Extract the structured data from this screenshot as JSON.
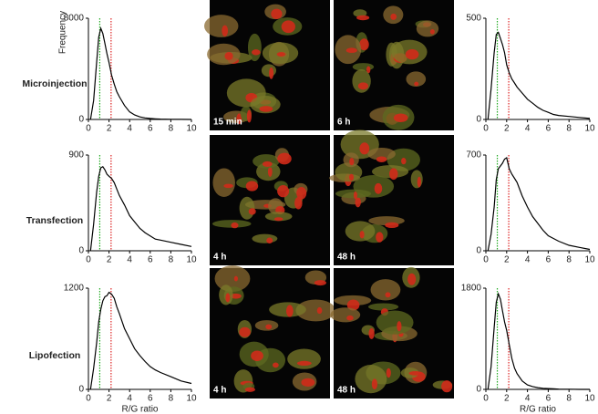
{
  "row_labels": [
    "Microinjection",
    "Transfection",
    "Lipofection"
  ],
  "images": [
    {
      "label": "15 min"
    },
    {
      "label": "6 h"
    },
    {
      "label": "4 h"
    },
    {
      "label": "48 h"
    },
    {
      "label": "4 h"
    },
    {
      "label": "48 h"
    }
  ],
  "chart_data": [
    {
      "type": "line",
      "ylabel": "Frequency",
      "color": "#000000",
      "x": [
        0.2,
        0.5,
        0.8,
        1.0,
        1.2,
        1.4,
        1.6,
        1.8,
        2.0,
        2.25,
        2.5,
        2.75,
        3.0,
        3.5,
        4.0,
        4.5,
        5.0,
        5.5,
        6.0,
        6.5,
        7.0,
        8.0,
        9.0,
        10.0
      ],
      "values": [
        0,
        1500,
        4500,
        6500,
        7200,
        6800,
        6000,
        5200,
        4500,
        3500,
        2800,
        2200,
        1800,
        1100,
        600,
        350,
        200,
        120,
        80,
        50,
        30,
        15,
        8,
        0
      ],
      "xlim": [
        0,
        10
      ],
      "xticks": [
        0,
        2,
        4,
        6,
        8,
        10
      ],
      "ylim": [
        0,
        8000
      ],
      "yticks": [
        0,
        8000
      ],
      "reference_lines": [
        {
          "x": 1.1,
          "color": "#22aa22"
        },
        {
          "x": 2.2,
          "color": "#dd2222"
        }
      ]
    },
    {
      "type": "line",
      "color": "#000000",
      "x": [
        0.2,
        0.5,
        0.8,
        1.0,
        1.2,
        1.4,
        1.6,
        1.8,
        2.0,
        2.25,
        2.5,
        2.75,
        3.0,
        3.5,
        4.0,
        4.5,
        5.0,
        5.5,
        6.0,
        6.5,
        7.0,
        8.0,
        9.0,
        10.0
      ],
      "values": [
        0,
        250,
        550,
        700,
        780,
        790,
        760,
        720,
        700,
        680,
        640,
        580,
        520,
        430,
        330,
        270,
        210,
        170,
        140,
        110,
        100,
        80,
        60,
        40
      ],
      "xlim": [
        0,
        10
      ],
      "xticks": [
        0,
        2,
        4,
        6,
        8,
        10
      ],
      "ylim": [
        0,
        900
      ],
      "yticks": [
        0,
        900
      ],
      "reference_lines": [
        {
          "x": 1.1,
          "color": "#22aa22"
        },
        {
          "x": 2.2,
          "color": "#dd2222"
        }
      ]
    },
    {
      "type": "line",
      "xlabel": "R/G ratio",
      "color": "#000000",
      "x": [
        0.2,
        0.5,
        0.8,
        1.0,
        1.2,
        1.4,
        1.6,
        1.8,
        2.0,
        2.25,
        2.5,
        2.75,
        3.0,
        3.5,
        4.0,
        4.5,
        5.0,
        5.5,
        6.0,
        6.5,
        7.0,
        8.0,
        9.0,
        10.0
      ],
      "values": [
        0,
        250,
        550,
        800,
        950,
        1050,
        1100,
        1110,
        1150,
        1130,
        1080,
        980,
        900,
        720,
        600,
        480,
        400,
        330,
        270,
        230,
        200,
        150,
        100,
        70
      ],
      "xlim": [
        0,
        10
      ],
      "xticks": [
        0,
        2,
        4,
        6,
        8,
        10
      ],
      "ylim": [
        0,
        1200
      ],
      "yticks": [
        0,
        1200
      ],
      "reference_lines": [
        {
          "x": 1.1,
          "color": "#22aa22"
        },
        {
          "x": 2.2,
          "color": "#dd2222"
        }
      ]
    },
    {
      "type": "line",
      "color": "#000000",
      "x": [
        0.2,
        0.5,
        0.8,
        1.0,
        1.2,
        1.4,
        1.6,
        1.8,
        2.0,
        2.25,
        2.5,
        2.75,
        3.0,
        3.5,
        4.0,
        4.5,
        5.0,
        5.5,
        6.0,
        6.5,
        7.0,
        8.0,
        9.0,
        10.0
      ],
      "values": [
        0,
        150,
        330,
        420,
        430,
        400,
        370,
        330,
        270,
        230,
        200,
        180,
        160,
        130,
        100,
        80,
        60,
        45,
        35,
        25,
        20,
        15,
        10,
        5
      ],
      "xlim": [
        0,
        10
      ],
      "xticks": [
        0,
        2,
        4,
        6,
        8,
        10
      ],
      "ylim": [
        0,
        500
      ],
      "yticks": [
        0,
        500
      ],
      "reference_lines": [
        {
          "x": 1.1,
          "color": "#22aa22"
        },
        {
          "x": 2.2,
          "color": "#dd2222"
        }
      ]
    },
    {
      "type": "line",
      "color": "#000000",
      "x": [
        0.2,
        0.5,
        0.8,
        1.0,
        1.2,
        1.4,
        1.6,
        1.8,
        2.0,
        2.25,
        2.5,
        2.75,
        3.0,
        3.5,
        4.0,
        4.5,
        5.0,
        5.5,
        6.0,
        6.5,
        7.0,
        8.0,
        9.0,
        10.0
      ],
      "values": [
        0,
        120,
        320,
        520,
        600,
        620,
        640,
        670,
        680,
        600,
        560,
        530,
        500,
        400,
        320,
        250,
        200,
        150,
        110,
        90,
        70,
        40,
        25,
        10
      ],
      "xlim": [
        0,
        10
      ],
      "xticks": [
        0,
        2,
        4,
        6,
        8,
        10
      ],
      "ylim": [
        0,
        700
      ],
      "yticks": [
        0,
        700
      ],
      "reference_lines": [
        {
          "x": 1.1,
          "color": "#22aa22"
        },
        {
          "x": 2.2,
          "color": "#dd2222"
        }
      ]
    },
    {
      "type": "line",
      "xlabel": "R/G ratio",
      "color": "#000000",
      "x": [
        0.2,
        0.5,
        0.8,
        1.0,
        1.2,
        1.4,
        1.6,
        1.8,
        2.0,
        2.25,
        2.5,
        2.75,
        3.0,
        3.5,
        4.0,
        4.5,
        5.0,
        5.5,
        6.0,
        6.5,
        7.0,
        8.0,
        9.0,
        10.0
      ],
      "values": [
        0,
        400,
        1100,
        1550,
        1700,
        1600,
        1400,
        1200,
        1050,
        800,
        550,
        380,
        280,
        150,
        80,
        50,
        30,
        20,
        15,
        10,
        5,
        3,
        0,
        0
      ],
      "xlim": [
        0,
        10
      ],
      "xticks": [
        0,
        2,
        4,
        6,
        8,
        10
      ],
      "ylim": [
        0,
        1800
      ],
      "yticks": [
        0,
        1800
      ],
      "reference_lines": [
        {
          "x": 1.1,
          "color": "#22aa22"
        },
        {
          "x": 2.2,
          "color": "#dd2222"
        }
      ]
    }
  ]
}
